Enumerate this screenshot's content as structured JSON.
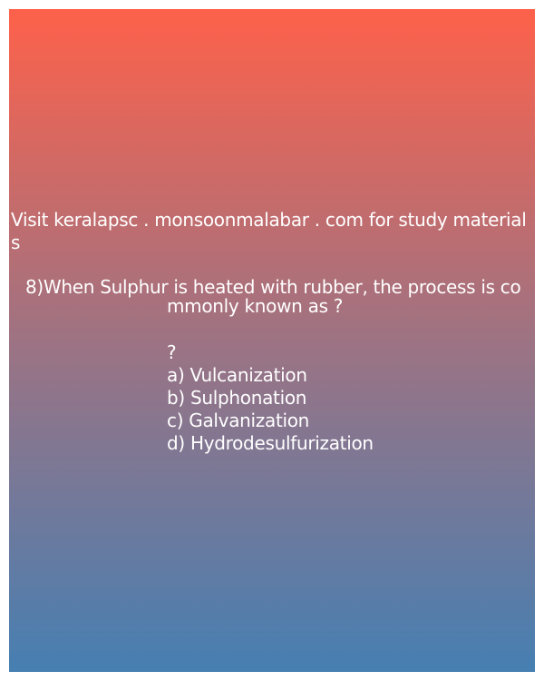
{
  "promo": {
    "text": "Visit keralapsc . monsoonmalabar . com for study materials"
  },
  "question": {
    "text": "8)When Sulphur is heated with rubber, the process is commonly known as ?",
    "mark": "?",
    "options": [
      "a) Vulcanization",
      "b) Sulphonation",
      "c) Galvanization",
      "d) Hydrodesulfurization"
    ]
  },
  "colors": {
    "gradient_top": "#fe614a",
    "gradient_mid": "#9d7383",
    "gradient_bottom": "#467fb2",
    "text": "#ffffff"
  }
}
